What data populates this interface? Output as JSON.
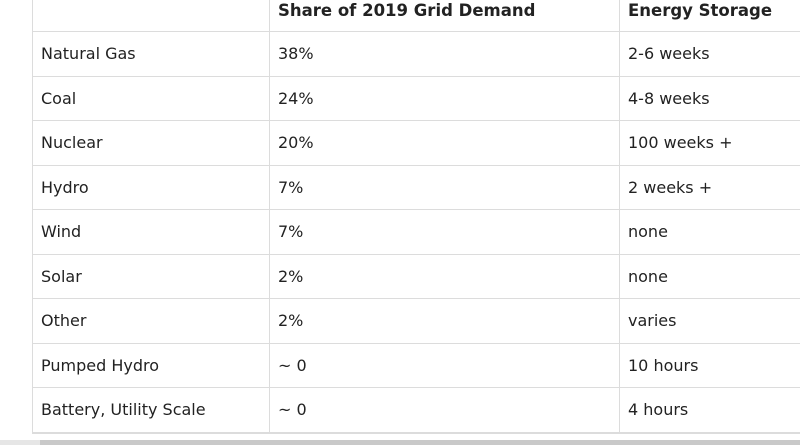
{
  "table": {
    "headers": [
      "",
      "Share of 2019 Grid Demand",
      "Energy Storage"
    ],
    "rows": [
      {
        "source": "Natural Gas",
        "share": "38%",
        "storage": "2-6 weeks"
      },
      {
        "source": "Coal",
        "share": "24%",
        "storage": "4-8 weeks"
      },
      {
        "source": "Nuclear",
        "share": "20%",
        "storage": "100 weeks +"
      },
      {
        "source": "Hydro",
        "share": "7%",
        "storage": "2 weeks +"
      },
      {
        "source": "Wind",
        "share": "7%",
        "storage": "none"
      },
      {
        "source": "Solar",
        "share": "2%",
        "storage": "none"
      },
      {
        "source": "Other",
        "share": "2%",
        "storage": "varies"
      },
      {
        "source": "Pumped Hydro",
        "share": "~ 0",
        "storage": "10 hours"
      },
      {
        "source": "Battery, Utility Scale",
        "share": "~ 0",
        "storage": "4 hours"
      }
    ]
  },
  "colors": {
    "border": "#dcdcdc",
    "text": "#222222",
    "background": "#ffffff"
  }
}
